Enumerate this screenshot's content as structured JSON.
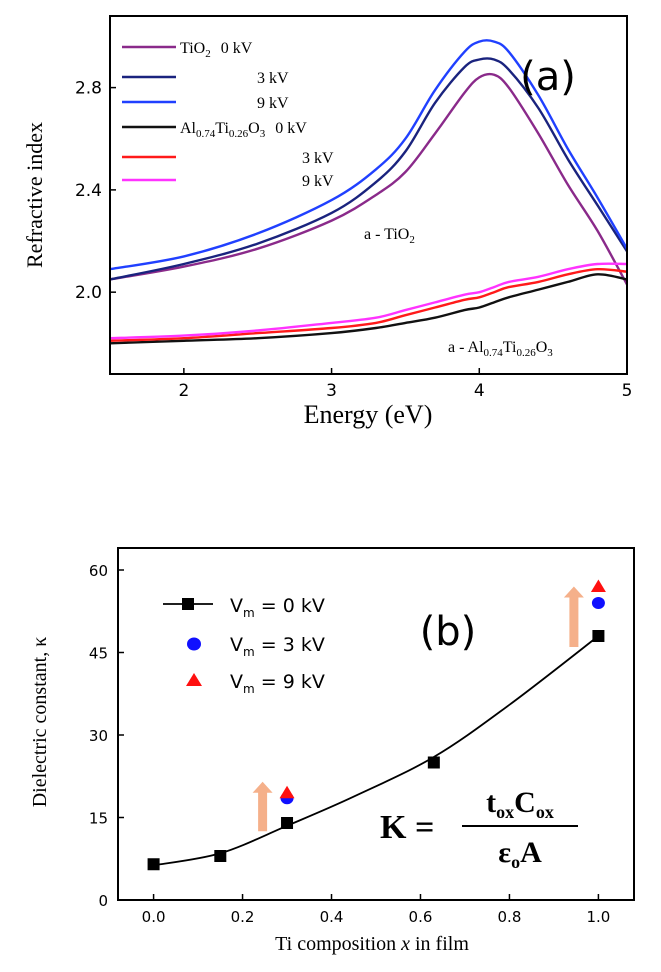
{
  "chart_data": [
    {
      "type": "line",
      "panel_label": "(a)",
      "xlabel": "Energy (eV)",
      "ylabel": "Refractive index",
      "xlim": [
        1.5,
        5.0
      ],
      "ylim": [
        1.68,
        3.08
      ],
      "xticks": [
        2,
        3,
        4,
        5
      ],
      "yticks": [
        2.0,
        2.4,
        2.8
      ],
      "grid": false,
      "legend_position": "top-left",
      "legend_rows": [
        {
          "material_base": "TiO",
          "material_sub": "2",
          "voltage": "0 kV",
          "color": "#8a2a8a"
        },
        {
          "voltage": "3 kV",
          "color": "#1a237e"
        },
        {
          "voltage": "9 kV",
          "color": "#2040ff"
        },
        {
          "material_parts": [
            "Al",
            "0.74",
            "Ti",
            "0.26",
            "O",
            "3"
          ],
          "voltage": "0 kV",
          "color": "#111111"
        },
        {
          "voltage": "3 kV",
          "color": "#ff1a1a"
        },
        {
          "voltage": "9 kV",
          "color": "#ff33ff"
        }
      ],
      "annotations": [
        {
          "parts": [
            "a - TiO",
            "2"
          ],
          "x": 3.62,
          "y": 2.24
        },
        {
          "parts": [
            "a - Al",
            "0.74",
            "Ti",
            "0.26",
            "O",
            "3"
          ],
          "x": 4.25,
          "y": 1.82
        }
      ],
      "x": [
        1.5,
        2.0,
        2.5,
        3.0,
        3.3,
        3.5,
        3.7,
        3.9,
        4.0,
        4.1,
        4.2,
        4.4,
        4.6,
        4.8,
        5.0
      ],
      "series": [
        {
          "color": "#8a2a8a",
          "values": [
            2.05,
            2.1,
            2.17,
            2.28,
            2.38,
            2.47,
            2.62,
            2.78,
            2.84,
            2.85,
            2.8,
            2.62,
            2.42,
            2.24,
            2.03
          ]
        },
        {
          "color": "#1a237e",
          "values": [
            2.05,
            2.11,
            2.19,
            2.31,
            2.43,
            2.55,
            2.74,
            2.88,
            2.91,
            2.91,
            2.87,
            2.72,
            2.52,
            2.34,
            2.16
          ]
        },
        {
          "color": "#2040ff",
          "values": [
            2.09,
            2.14,
            2.23,
            2.36,
            2.48,
            2.6,
            2.79,
            2.94,
            2.98,
            2.98,
            2.94,
            2.77,
            2.56,
            2.37,
            2.17
          ]
        },
        {
          "color": "#111111",
          "values": [
            1.8,
            1.81,
            1.82,
            1.84,
            1.86,
            1.88,
            1.9,
            1.93,
            1.94,
            1.96,
            1.98,
            2.01,
            2.04,
            2.07,
            2.05
          ]
        },
        {
          "color": "#ff1a1a",
          "values": [
            1.81,
            1.82,
            1.84,
            1.86,
            1.88,
            1.91,
            1.94,
            1.97,
            1.98,
            2.0,
            2.02,
            2.04,
            2.07,
            2.09,
            2.08
          ]
        },
        {
          "color": "#ff33ff",
          "values": [
            1.82,
            1.83,
            1.85,
            1.88,
            1.9,
            1.93,
            1.96,
            1.99,
            2.0,
            2.02,
            2.04,
            2.06,
            2.09,
            2.11,
            2.11
          ]
        }
      ]
    },
    {
      "type": "scatter",
      "panel_label": "(b)",
      "xlabel_parts": [
        "Ti composition ",
        "x",
        " in film"
      ],
      "ylabel": "Dielectric constant, κ",
      "xlim": [
        -0.08,
        1.08
      ],
      "ylim": [
        0,
        64
      ],
      "xticks": [
        "0.0",
        "0.2",
        "0.4",
        "0.6",
        "0.8",
        "1.0"
      ],
      "yticks": [
        "0",
        "15",
        "30",
        "45",
        "60"
      ],
      "grid": false,
      "legend_position": "top-left",
      "legend": [
        {
          "base": "V",
          "sub": "m",
          "rest": " = 0 kV",
          "marker": "square",
          "color": "#000000"
        },
        {
          "base": "V",
          "sub": "m",
          "rest": " = 3 kV",
          "marker": "circle",
          "color": "#1010ff"
        },
        {
          "base": "V",
          "sub": "m",
          "rest": " = 9 kV",
          "marker": "triangle",
          "color": "#ff1010"
        }
      ],
      "series": [
        {
          "color": "#000000",
          "marker": "square",
          "x": [
            0.0,
            0.15,
            0.3,
            0.63,
            1.0
          ],
          "values": [
            6.5,
            8,
            14,
            25,
            48
          ]
        },
        {
          "color": "#1010ff",
          "marker": "circle",
          "x": [
            0.3,
            1.0
          ],
          "values": [
            18.5,
            54
          ]
        },
        {
          "color": "#ff1010",
          "marker": "triangle",
          "x": [
            0.3,
            1.0
          ],
          "values": [
            19.5,
            57
          ]
        }
      ],
      "fit_curve": {
        "x": [
          0.0,
          0.15,
          0.3,
          0.45,
          0.63,
          0.8,
          1.0
        ],
        "values": [
          6.3,
          8.5,
          13.5,
          18.8,
          26.0,
          35.5,
          48.0
        ]
      },
      "arrows": [
        {
          "x": 0.245,
          "y_from": 12.5,
          "y_to": 21.5,
          "color": "#f5b08a"
        },
        {
          "x": 0.945,
          "y_from": 46,
          "y_to": 57,
          "color": "#f5b08a"
        }
      ],
      "equation": {
        "lhs": "K = ",
        "num_parts": [
          "t",
          "ox",
          "C",
          "ox"
        ],
        "den_parts": [
          "ε",
          "o",
          "A"
        ]
      }
    }
  ]
}
